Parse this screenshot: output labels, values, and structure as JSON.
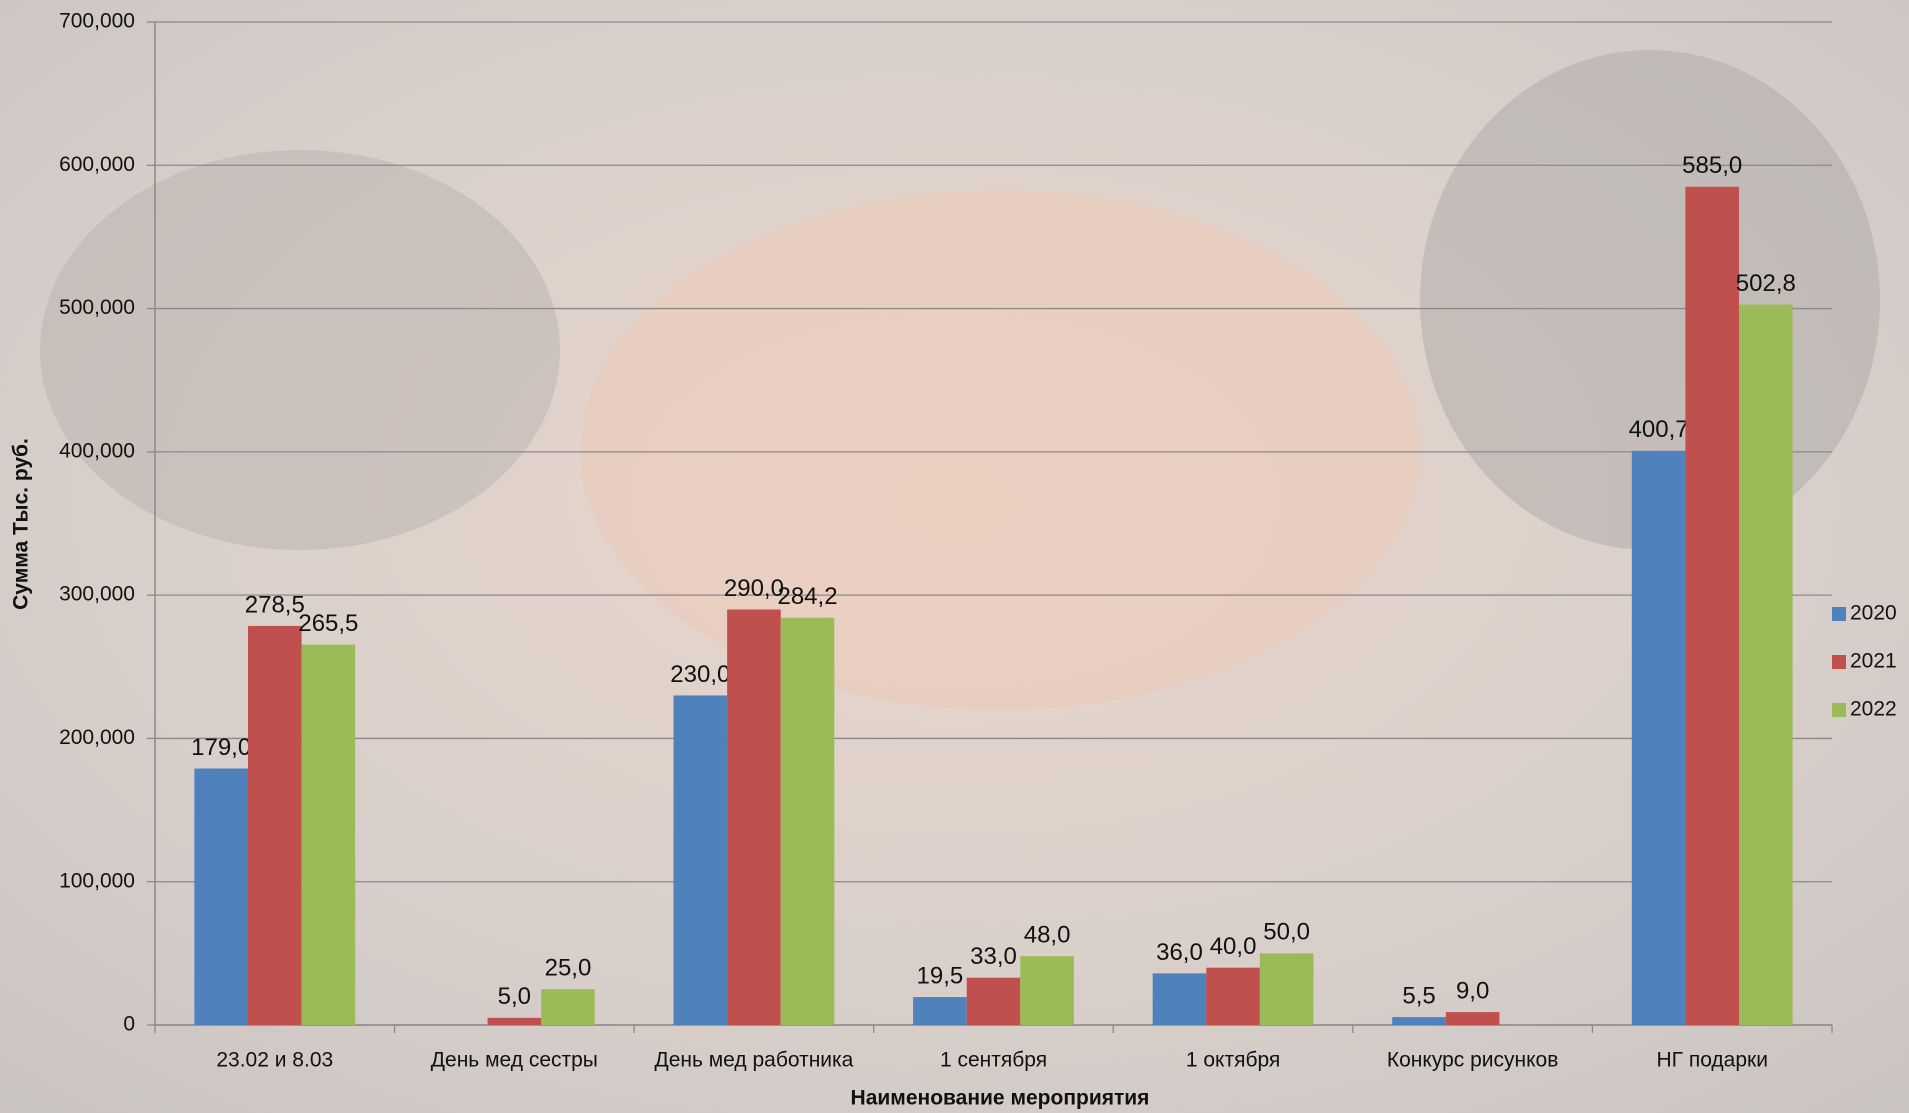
{
  "chart_data": {
    "type": "bar",
    "x_label": "Наименование мероприятия",
    "y_label": "Сумма Тыс. руб.",
    "categories": [
      "23.02 и 8.03",
      "День мед сестры",
      "День мед работника",
      "1 сентября",
      "1 октября",
      "Конкурс рисунков",
      "НГ подарки"
    ],
    "series": [
      {
        "name": "2020",
        "color": "#4f81bd",
        "values": [
          179000,
          null,
          230000,
          19500,
          36000,
          5500,
          400700
        ],
        "value_labels": [
          "179,0",
          null,
          "230,0",
          "19,5",
          "36,0",
          "5,5",
          "400,7"
        ]
      },
      {
        "name": "2021",
        "color": "#c0504d",
        "values": [
          278500,
          5000,
          290000,
          33000,
          40000,
          9000,
          585000
        ],
        "value_labels": [
          "278,5",
          "5,0",
          "290,0",
          "33,0",
          "40,0",
          "9,0",
          "585,0"
        ]
      },
      {
        "name": "2022",
        "color": "#9bbb59",
        "values": [
          265500,
          25000,
          284200,
          48000,
          50000,
          null,
          502800
        ],
        "value_labels": [
          "265,5",
          "25,0",
          "284,2",
          "48,0",
          "50,0",
          null,
          "502,8"
        ]
      }
    ],
    "ylim": [
      0,
      700000
    ],
    "yticks": [
      0,
      {
        "value": 100000,
        "label": "100,000"
      },
      {
        "value": 200000,
        "label": "200,000"
      },
      {
        "value": 300000,
        "label": "300,000"
      },
      {
        "value": 400000,
        "label": "400,000"
      },
      {
        "value": 500000,
        "label": "500,000"
      },
      {
        "value": 600000,
        "label": "600,000"
      },
      {
        "value": 700000,
        "label": "700,000"
      }
    ],
    "grid": true,
    "legend": "right"
  }
}
